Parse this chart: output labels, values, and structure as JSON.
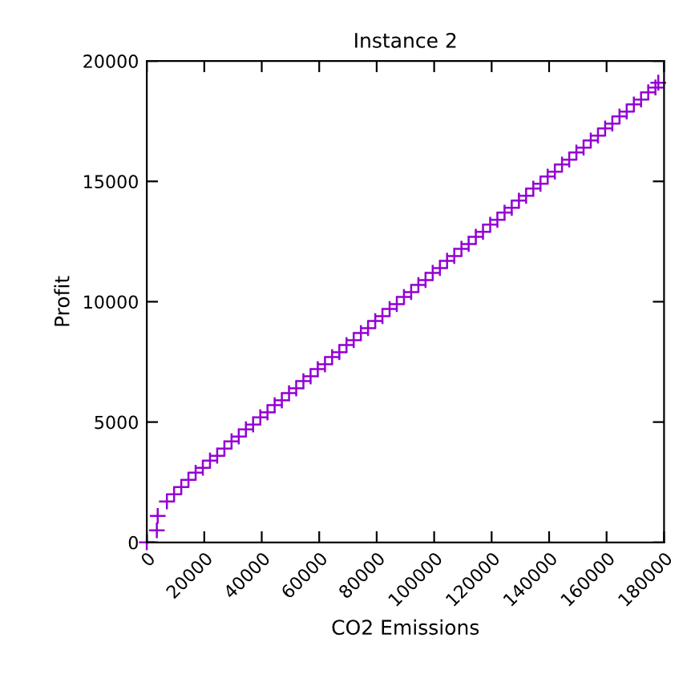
{
  "chart_data": {
    "type": "scatter",
    "title": "Instance 2",
    "xlabel": "CO2 Emissions",
    "ylabel": "Profit",
    "xlim": [
      0,
      180000
    ],
    "ylim": [
      0,
      20000
    ],
    "xticks": [
      0,
      20000,
      40000,
      60000,
      80000,
      100000,
      120000,
      140000,
      160000,
      180000
    ],
    "yticks": [
      0,
      5000,
      10000,
      15000,
      20000
    ],
    "grid": false,
    "marker": "cross",
    "series": [
      {
        "color": "#9400d3",
        "x": [
          0,
          3500,
          3800,
          7000,
          9500,
          12000,
          14500,
          17000,
          19500,
          22000,
          24500,
          27000,
          29500,
          32000,
          34500,
          37000,
          39500,
          42000,
          44500,
          47000,
          49500,
          52000,
          54500,
          57000,
          59500,
          62000,
          64500,
          67000,
          69500,
          72000,
          74500,
          77000,
          79500,
          82000,
          84500,
          87000,
          89500,
          92000,
          94500,
          97000,
          99500,
          102000,
          104500,
          107000,
          109500,
          112000,
          114500,
          117000,
          119500,
          122000,
          124500,
          127000,
          129500,
          132000,
          134500,
          137000,
          139500,
          142000,
          144500,
          147000,
          149500,
          152000,
          154500,
          157000,
          159500,
          162000,
          164500,
          167000,
          169500,
          172000,
          174500,
          177000,
          178000
        ],
        "values": [
          0,
          500,
          1100,
          1700,
          2000,
          2300,
          2600,
          2900,
          3100,
          3400,
          3600,
          3900,
          4200,
          4400,
          4700,
          4900,
          5200,
          5400,
          5700,
          5900,
          6200,
          6400,
          6700,
          6900,
          7200,
          7400,
          7700,
          7900,
          8200,
          8400,
          8700,
          8900,
          9200,
          9400,
          9700,
          9900,
          10200,
          10400,
          10700,
          10900,
          11200,
          11400,
          11700,
          11900,
          12200,
          12400,
          12700,
          12900,
          13200,
          13400,
          13700,
          13900,
          14200,
          14400,
          14700,
          14900,
          15200,
          15400,
          15700,
          15900,
          16200,
          16400,
          16700,
          16900,
          17200,
          17400,
          17700,
          17900,
          18200,
          18400,
          18700,
          18900,
          19100
        ]
      }
    ]
  }
}
